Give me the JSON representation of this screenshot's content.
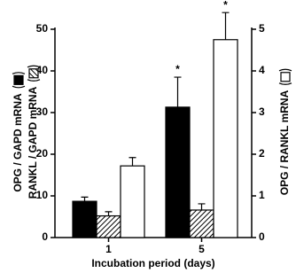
{
  "chart_data": {
    "type": "bar",
    "x_label": "Incubation period (days)",
    "categories": [
      "1",
      "5"
    ],
    "series": [
      {
        "name": "OPG / GAPD mRNA",
        "color": "#000000",
        "pattern": "solid",
        "values": [
          8.7,
          31.3
        ],
        "errors": [
          1.0,
          7.2
        ]
      },
      {
        "name": "RANKL / GAPD mRNA",
        "color": "#000000",
        "pattern": "hatch",
        "values": [
          5.2,
          6.6
        ],
        "errors": [
          1.0,
          1.5
        ]
      },
      {
        "name": "OPG / RANKL mRNA",
        "color": "#ffffff",
        "pattern": "solid",
        "axis": "y2",
        "values": [
          1.72,
          4.75
        ],
        "errors": [
          0.2,
          0.65
        ]
      }
    ],
    "annotations": [
      "*",
      "*"
    ],
    "ylim": [
      0,
      50
    ],
    "yticks": [
      0,
      10,
      20,
      30,
      40,
      50
    ],
    "y2lim": [
      0,
      5
    ],
    "y2ticks": [
      0,
      1,
      2,
      3,
      4,
      5
    ],
    "grid": false
  }
}
